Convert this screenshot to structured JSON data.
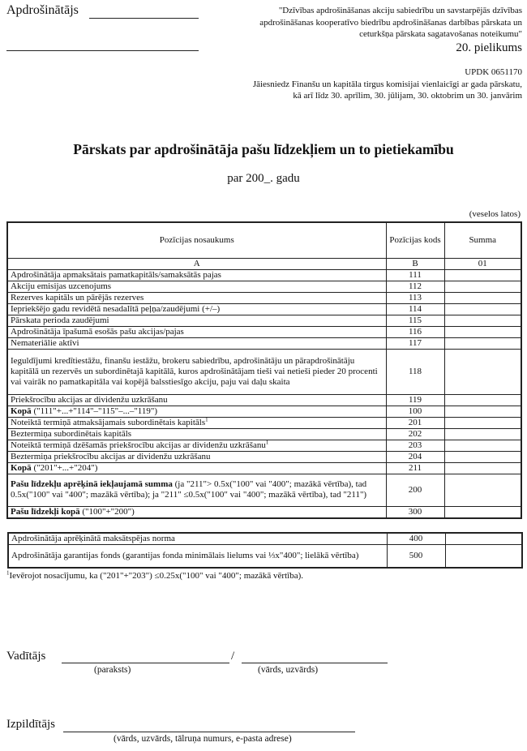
{
  "header": {
    "insurer_label": "Apdrošinātājs",
    "regulation_lines": [
      "\"Dzīvības apdrošināšanas akciju sabiedrību un savstarpējās dzīvības",
      "apdrošināšanas kooperatīvo biedrību apdrošināšanas darbības pārskata un",
      "ceturkšņa pārskata sagatavošanas noteikumu\""
    ],
    "annex": "20. pielikums",
    "code": "UPDK 0651170",
    "submit_lines": [
      "Jāiesniedz Finanšu un kapitāla tirgus komisijai vienlaicīgi ar gada pārskatu,",
      "kā arī līdz 30. aprīlim, 30. jūlijam, 30. oktobrim un 30. janvārim"
    ]
  },
  "title": "Pārskats par apdrošinātāja pašu līdzekļiem un to pietiekamību",
  "subtitle": "par 200_. gadu",
  "unit_note": "(veselos latos)",
  "table": {
    "headers": [
      "Pozīcijas nosaukums",
      "Pozīcijas kods",
      "Summa"
    ],
    "index_row": [
      "A",
      "B",
      "01"
    ],
    "rows": [
      {
        "bold": "",
        "text": "Apdrošinātāja apmaksātais pamatkapitāls/samaksātās pajas",
        "sup": "",
        "code": "111",
        "value": ""
      },
      {
        "bold": "",
        "text": "Akciju emisijas uzcenojums",
        "sup": "",
        "code": "112",
        "value": ""
      },
      {
        "bold": "",
        "text": "Rezerves kapitāls un pārējās rezerves",
        "sup": "",
        "code": "113",
        "value": ""
      },
      {
        "bold": "",
        "text": "Iepriekšējo gadu revidētā nesadalītā peļņa/zaudējumi (+/–)",
        "sup": "",
        "code": "114",
        "value": ""
      },
      {
        "bold": "",
        "text": "Pārskata perioda zaudējumi",
        "sup": "",
        "code": "115",
        "value": ""
      },
      {
        "bold": "",
        "text": "Apdrošinātāja īpašumā esošās pašu akcijas/pajas",
        "sup": "",
        "code": "116",
        "value": ""
      },
      {
        "bold": "",
        "text": "Nemateriālie aktīvi",
        "sup": "",
        "code": "117",
        "value": ""
      },
      {
        "bold": "",
        "text": "Ieguldījumi kredītiestāžu, finanšu iestāžu, brokeru sabiedrību, apdrošinātāju un pārapdrošinātāju kapitālā un rezervēs un subordinētajā kapitālā, kuros apdrošinātājam tieši vai netieši pieder 20 procenti vai vairāk no pamatkapitāla vai kopējā balsstiesīgo akciju, paju vai daļu skaita",
        "sup": "",
        "code": "118",
        "value": ""
      },
      {
        "bold": "",
        "text": "Priekšrocību akcijas ar dividenžu uzkrāšanu",
        "sup": "",
        "code": "119",
        "value": ""
      },
      {
        "bold": "Kopā",
        "text": " (\"111\"+...+\"114\"–\"115\"–...–\"119\")",
        "sup": "",
        "code": "100",
        "value": ""
      },
      {
        "bold": "",
        "text": "Noteiktā termiņā atmaksājamais subordinētais kapitāls",
        "sup": "1",
        "code": "201",
        "value": ""
      },
      {
        "bold": "",
        "text": "Beztermiņa subordinētais kapitāls",
        "sup": "",
        "code": "202",
        "value": ""
      },
      {
        "bold": "",
        "text": "Noteiktā termiņā dzēšamās priekšrocību akcijas ar dividenžu uzkrāšanu",
        "sup": "1",
        "code": "203",
        "value": ""
      },
      {
        "bold": "",
        "text": "Beztermiņa priekšrocību akcijas ar dividenžu uzkrāšanu",
        "sup": "",
        "code": "204",
        "value": ""
      },
      {
        "bold": "Kopā",
        "text": " (\"201\"+...+\"204\")",
        "sup": "",
        "code": "211",
        "value": ""
      },
      {
        "bold": "Pašu līdzekļu aprēķinā iekļaujamā summa",
        "text": " (ja \"211\"> 0.5x(\"100\" vai \"400\"; mazākā vērtība), tad 0.5x(\"100\" vai \"400\"; mazākā vērtība); ja \"211\" ≤0.5x(\"100\" vai \"400\"; mazākā vērtība), tad \"211\")",
        "sup": "",
        "code": "200",
        "value": ""
      },
      {
        "bold": "Pašu līdzekļi kopā",
        "text": " (\"100\"+\"200\")",
        "sup": "",
        "code": "300",
        "value": ""
      }
    ]
  },
  "solvency_table": {
    "rows": [
      {
        "text": "Apdrošinātāja aprēķinātā maksātspējas norma",
        "code": "400",
        "value": ""
      },
      {
        "text": "Apdrošinātāja garantijas fonds (garantijas fonda minimālais lielums vai ⅓x\"400\"; lielākā vērtība)",
        "code": "500",
        "value": ""
      }
    ]
  },
  "footnote": {
    "mark": "1",
    "text": "Ievērojot nosacījumu, ka (\"201\"+\"203\") ≤0.25x(\"100\" vai \"400\"; mazākā vērtība)."
  },
  "signatures": {
    "manager_label": "Vadītājs",
    "separator": "/",
    "signature_caption": "(paraksts)",
    "name_caption": "(vārds, uzvārds)",
    "preparer_label": "Izpildītājs",
    "preparer_caption": "(vārds, uzvārds, tālruņa numurs, e-pasta adrese)"
  }
}
